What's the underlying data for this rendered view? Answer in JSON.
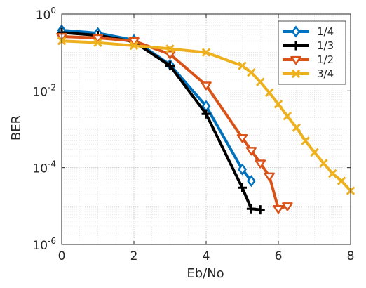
{
  "chart_data": {
    "type": "line",
    "title": "",
    "xlabel": "Eb/No",
    "ylabel": "BER",
    "x_scale": "linear",
    "y_scale": "log",
    "xlim": [
      0,
      8
    ],
    "ylim": [
      1e-06,
      1
    ],
    "x_ticks": [
      0,
      2,
      4,
      6,
      8
    ],
    "y_ticks": [
      {
        "value": 1,
        "base": "10",
        "exp": "0"
      },
      {
        "value": 0.01,
        "base": "10",
        "exp": "-2"
      },
      {
        "value": 0.0001,
        "base": "10",
        "exp": "-4"
      },
      {
        "value": 1e-06,
        "base": "10",
        "exp": "-6"
      }
    ],
    "grid": true,
    "legend_position": "top-right",
    "series": [
      {
        "name": "1/4",
        "color": "#0072BD",
        "marker": "diamond",
        "points": [
          [
            0,
            0.38
          ],
          [
            1,
            0.32
          ],
          [
            2,
            0.21
          ],
          [
            3,
            0.048
          ],
          [
            4,
            0.004
          ],
          [
            5,
            9e-05
          ],
          [
            5.25,
            4.5e-05
          ]
        ]
      },
      {
        "name": "1/3",
        "color": "#000000",
        "marker": "plus",
        "points": [
          [
            0,
            0.33
          ],
          [
            1,
            0.28
          ],
          [
            2,
            0.19
          ],
          [
            3,
            0.045
          ],
          [
            4,
            0.0025
          ],
          [
            5,
            3e-05
          ],
          [
            5.25,
            8.5e-06
          ],
          [
            5.5,
            8e-06
          ]
        ]
      },
      {
        "name": "1/2",
        "color": "#D95319",
        "marker": "triangle-down",
        "points": [
          [
            0,
            0.26
          ],
          [
            1,
            0.24
          ],
          [
            2,
            0.2
          ],
          [
            3,
            0.09
          ],
          [
            4,
            0.014
          ],
          [
            5,
            0.0006
          ],
          [
            5.25,
            0.00028
          ],
          [
            5.5,
            0.00013
          ],
          [
            5.75,
            6e-05
          ],
          [
            6,
            8.5e-06
          ],
          [
            6.25,
            1e-05
          ]
        ]
      },
      {
        "name": "3/4",
        "color": "#EDB120",
        "marker": "x",
        "points": [
          [
            0,
            0.2
          ],
          [
            1,
            0.18
          ],
          [
            2,
            0.15
          ],
          [
            3,
            0.125
          ],
          [
            4,
            0.1
          ],
          [
            5,
            0.045
          ],
          [
            5.25,
            0.03
          ],
          [
            5.5,
            0.017
          ],
          [
            5.75,
            0.009
          ],
          [
            6,
            0.0045
          ],
          [
            6.25,
            0.0022
          ],
          [
            6.5,
            0.0011
          ],
          [
            6.75,
            0.0005
          ],
          [
            7,
            0.00025
          ],
          [
            7.25,
            0.00013
          ],
          [
            7.5,
            7e-05
          ],
          [
            7.75,
            4.5e-05
          ],
          [
            8,
            2.5e-05
          ]
        ]
      }
    ]
  }
}
